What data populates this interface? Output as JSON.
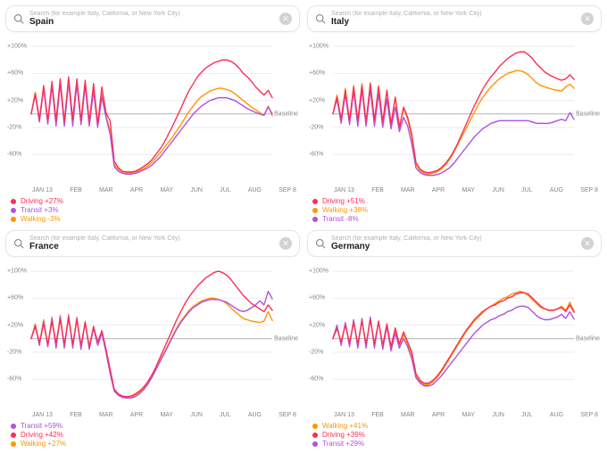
{
  "search_placeholder": "Search (for example Italy, California, or New York City)",
  "colors": {
    "driving": "#fe2d55",
    "transit": "#af52de",
    "walking": "#ff9500",
    "grid": "#e8e8ed",
    "baseline": "#b0b0b5",
    "text_muted": "#86868b"
  },
  "line_width": 1.3,
  "xaxis_labels": [
    "JAN 13",
    "FEB",
    "MAR",
    "APR",
    "MAY",
    "JUN",
    "JUL",
    "AUG",
    "SEP 8"
  ],
  "baseline_label": "Baseline",
  "panels": [
    {
      "name": "Spain",
      "ylim": [
        -100,
        110
      ],
      "yticks": [
        -60,
        -20,
        20,
        60,
        100
      ],
      "legend": [
        {
          "color": "driving",
          "label": "Driving +27%"
        },
        {
          "color": "transit",
          "label": "Transit +3%"
        },
        {
          "color": "walking",
          "label": "Walking -3%"
        }
      ],
      "series": {
        "driving": [
          0,
          30,
          -8,
          42,
          -10,
          48,
          -10,
          52,
          -12,
          55,
          -8,
          52,
          -10,
          50,
          -12,
          45,
          -15,
          40,
          2,
          -10,
          -70,
          -80,
          -85,
          -86,
          -86,
          -85,
          -82,
          -78,
          -74,
          -68,
          -60,
          -52,
          -42,
          -30,
          -18,
          -5,
          8,
          22,
          35,
          45,
          55,
          62,
          68,
          72,
          76,
          78,
          80,
          80,
          78,
          74,
          68,
          60,
          55,
          48,
          40,
          34,
          28,
          35,
          24
        ],
        "transit": [
          0,
          28,
          -12,
          38,
          -15,
          42,
          -18,
          45,
          -18,
          48,
          -18,
          45,
          -16,
          42,
          -18,
          35,
          -20,
          25,
          -5,
          -30,
          -78,
          -85,
          -88,
          -89,
          -89,
          -88,
          -86,
          -83,
          -80,
          -76,
          -70,
          -64,
          -56,
          -48,
          -40,
          -32,
          -24,
          -16,
          -8,
          0,
          6,
          12,
          16,
          20,
          22,
          24,
          24,
          24,
          22,
          20,
          16,
          12,
          8,
          5,
          2,
          0,
          -2,
          10,
          0
        ],
        "walking": [
          0,
          32,
          -10,
          40,
          -12,
          45,
          -14,
          48,
          -14,
          50,
          -12,
          48,
          -12,
          45,
          -14,
          38,
          -16,
          30,
          -2,
          -25,
          -75,
          -82,
          -86,
          -87,
          -87,
          -86,
          -84,
          -81,
          -77,
          -72,
          -65,
          -58,
          -50,
          -42,
          -34,
          -25,
          -16,
          -6,
          4,
          12,
          20,
          26,
          30,
          34,
          36,
          38,
          38,
          36,
          34,
          30,
          25,
          20,
          15,
          10,
          6,
          2,
          -2,
          12,
          -3
        ]
      }
    },
    {
      "name": "Italy",
      "ylim": [
        -100,
        110
      ],
      "yticks": [
        -60,
        -20,
        20,
        60,
        100
      ],
      "legend": [
        {
          "color": "driving",
          "label": "Driving +51%"
        },
        {
          "color": "walking",
          "label": "Walking +38%"
        },
        {
          "color": "transit",
          "label": "Transit -8%"
        }
      ],
      "series": {
        "driving": [
          0,
          25,
          -8,
          35,
          -10,
          40,
          -10,
          42,
          -12,
          45,
          -10,
          40,
          -12,
          35,
          -15,
          25,
          -20,
          10,
          -5,
          -30,
          -72,
          -82,
          -86,
          -87,
          -86,
          -84,
          -80,
          -74,
          -66,
          -56,
          -44,
          -30,
          -16,
          -2,
          12,
          24,
          36,
          46,
          55,
          62,
          70,
          76,
          82,
          86,
          90,
          92,
          92,
          88,
          82,
          74,
          68,
          62,
          58,
          55,
          52,
          50,
          52,
          58,
          51
        ],
        "walking": [
          0,
          28,
          -10,
          38,
          -12,
          42,
          -12,
          45,
          -14,
          46,
          -12,
          42,
          -14,
          35,
          -16,
          24,
          -20,
          8,
          -8,
          -35,
          -75,
          -84,
          -88,
          -89,
          -88,
          -86,
          -82,
          -76,
          -68,
          -58,
          -46,
          -34,
          -22,
          -10,
          2,
          14,
          24,
          32,
          40,
          46,
          52,
          56,
          60,
          62,
          64,
          64,
          62,
          58,
          52,
          46,
          42,
          40,
          38,
          36,
          35,
          34,
          40,
          44,
          38
        ],
        "transit": [
          0,
          22,
          -14,
          30,
          -16,
          34,
          -18,
          36,
          -18,
          36,
          -18,
          30,
          -20,
          22,
          -22,
          10,
          -26,
          -5,
          -18,
          -45,
          -80,
          -87,
          -90,
          -91,
          -91,
          -90,
          -88,
          -84,
          -80,
          -74,
          -66,
          -58,
          -50,
          -42,
          -34,
          -28,
          -22,
          -18,
          -14,
          -12,
          -10,
          -10,
          -10,
          -10,
          -10,
          -10,
          -10,
          -10,
          -12,
          -14,
          -14,
          -14,
          -14,
          -12,
          -10,
          -8,
          -10,
          2,
          -8
        ]
      }
    },
    {
      "name": "France",
      "ylim": [
        -100,
        110
      ],
      "yticks": [
        -60,
        -20,
        20,
        60,
        100
      ],
      "legend": [
        {
          "color": "transit",
          "label": "Transit +59%"
        },
        {
          "color": "driving",
          "label": "Driving +42%"
        },
        {
          "color": "walking",
          "label": "Walking +27%"
        }
      ],
      "series": {
        "driving": [
          0,
          18,
          -6,
          22,
          -8,
          25,
          -6,
          28,
          -8,
          30,
          -8,
          28,
          -10,
          24,
          -12,
          18,
          -5,
          12,
          -15,
          -45,
          -75,
          -82,
          -85,
          -86,
          -85,
          -82,
          -78,
          -72,
          -64,
          -54,
          -42,
          -28,
          -14,
          0,
          14,
          28,
          40,
          52,
          62,
          70,
          78,
          84,
          90,
          94,
          98,
          100,
          98,
          94,
          88,
          80,
          72,
          64,
          58,
          52,
          48,
          44,
          40,
          50,
          42
        ],
        "transit": [
          0,
          20,
          -10,
          26,
          -12,
          30,
          -14,
          32,
          -14,
          34,
          -14,
          30,
          -16,
          24,
          -16,
          16,
          -10,
          8,
          -20,
          -52,
          -78,
          -84,
          -87,
          -88,
          -88,
          -86,
          -82,
          -76,
          -68,
          -58,
          -46,
          -34,
          -22,
          -10,
          2,
          14,
          24,
          32,
          40,
          46,
          50,
          54,
          56,
          58,
          58,
          58,
          56,
          54,
          50,
          46,
          42,
          40,
          42,
          46,
          50,
          56,
          50,
          70,
          59
        ],
        "walking": [
          0,
          22,
          -8,
          28,
          -10,
          32,
          -10,
          35,
          -12,
          36,
          -12,
          32,
          -14,
          26,
          -14,
          18,
          -8,
          10,
          -18,
          -50,
          -76,
          -83,
          -86,
          -87,
          -86,
          -84,
          -80,
          -74,
          -66,
          -56,
          -44,
          -32,
          -20,
          -8,
          4,
          16,
          26,
          34,
          42,
          48,
          52,
          56,
          58,
          60,
          60,
          58,
          56,
          52,
          46,
          40,
          35,
          30,
          28,
          26,
          25,
          24,
          26,
          40,
          27
        ]
      }
    },
    {
      "name": "Germany",
      "ylim": [
        -100,
        110
      ],
      "yticks": [
        -60,
        -20,
        20,
        60,
        100
      ],
      "legend": [
        {
          "color": "walking",
          "label": "Walking +41%"
        },
        {
          "color": "driving",
          "label": "Driving +39%"
        },
        {
          "color": "transit",
          "label": "Transit +29%"
        }
      ],
      "series": {
        "driving": [
          0,
          15,
          -5,
          20,
          -6,
          24,
          -8,
          26,
          -8,
          28,
          -8,
          26,
          -10,
          22,
          -12,
          16,
          -8,
          10,
          -5,
          -20,
          -52,
          -62,
          -66,
          -66,
          -62,
          -56,
          -48,
          -38,
          -28,
          -18,
          -8,
          2,
          12,
          20,
          28,
          34,
          40,
          44,
          48,
          50,
          54,
          56,
          60,
          62,
          66,
          68,
          68,
          66,
          60,
          54,
          48,
          44,
          42,
          42,
          44,
          46,
          40,
          50,
          39
        ],
        "walking": [
          0,
          18,
          -6,
          22,
          -8,
          26,
          -10,
          28,
          -10,
          30,
          -10,
          26,
          -12,
          20,
          -14,
          12,
          -10,
          6,
          -8,
          -24,
          -55,
          -64,
          -68,
          -68,
          -64,
          -58,
          -50,
          -40,
          -30,
          -20,
          -10,
          0,
          10,
          18,
          26,
          32,
          38,
          44,
          48,
          52,
          56,
          60,
          62,
          66,
          68,
          70,
          68,
          64,
          58,
          52,
          46,
          44,
          42,
          42,
          44,
          48,
          42,
          54,
          41
        ],
        "transit": [
          0,
          20,
          -10,
          24,
          -12,
          28,
          -14,
          30,
          -14,
          32,
          -14,
          26,
          -16,
          18,
          -18,
          8,
          -14,
          0,
          -12,
          -30,
          -58,
          -66,
          -70,
          -70,
          -68,
          -62,
          -56,
          -48,
          -40,
          -32,
          -24,
          -16,
          -8,
          0,
          8,
          14,
          20,
          24,
          28,
          30,
          34,
          36,
          40,
          42,
          46,
          48,
          48,
          46,
          40,
          34,
          30,
          28,
          28,
          30,
          32,
          36,
          30,
          40,
          29
        ]
      }
    }
  ]
}
